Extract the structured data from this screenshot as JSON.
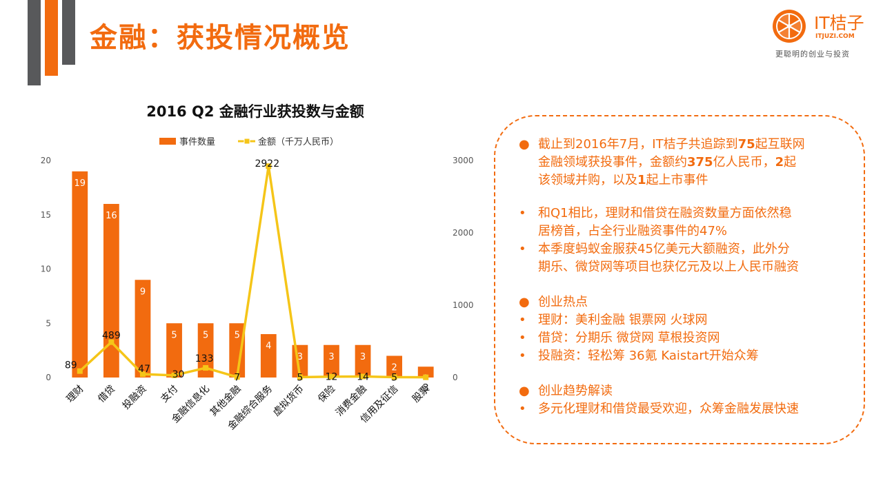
{
  "header": {
    "title": "金融：获投情况概览"
  },
  "logo": {
    "name": "IT桔子",
    "domain": "ITJUZI.COM",
    "slogan": "更聪明的创业与投资"
  },
  "chart_data": {
    "type": "bar",
    "title": "2016 Q2 金融行业获投数与金额",
    "categories": [
      "理财",
      "借贷",
      "投融资",
      "支付",
      "金融信息化",
      "其他金融",
      "金融综合服务",
      "虚拟货币",
      "保险",
      "消费金融",
      "信用及征信",
      "股票"
    ],
    "series": [
      {
        "name": "事件数量",
        "type": "bar",
        "axis": "left",
        "values": [
          19,
          16,
          9,
          5,
          5,
          5,
          4,
          3,
          3,
          3,
          2,
          1
        ]
      },
      {
        "name": "金额（千万人民币）",
        "type": "line",
        "axis": "right",
        "values": [
          89,
          489,
          47,
          30,
          133,
          7,
          2922,
          5,
          12,
          14,
          5,
          3
        ]
      }
    ],
    "line_labels": [
      "89",
      "489",
      "47",
      "30",
      "133",
      "7",
      "2922",
      "5",
      "12",
      "14",
      "5",
      "3"
    ],
    "ylim_left": [
      0,
      20
    ],
    "yticks_left": [
      0,
      5,
      10,
      15,
      20
    ],
    "ylim_right": [
      0,
      3000
    ],
    "yticks_right": [
      0,
      1000,
      2000,
      3000
    ],
    "legend_position": "top",
    "grid": false,
    "colors": {
      "bar": "#f26b0f",
      "line": "#f5c518"
    }
  },
  "info": {
    "section1": {
      "line1_pre": "截止到2016年7月，IT桔子共追踪到",
      "line1_b1": "75",
      "line1_post": "起互联网",
      "line2_pre": "金融领域获投事件，金额约",
      "line2_b1": "375",
      "line2_mid": "亿人民币，",
      "line2_b2": "2",
      "line2_post": "起",
      "line3_pre": "该领域并购，以及",
      "line3_b1": "1",
      "line3_post": "起上市事件"
    },
    "lines": [
      "和Q1相比，理财和借贷在融资数量方面依然稳",
      "居榜首，占全行业融资事件的47%",
      "本季度蚂蚁金服获45亿美元大额融资，此外分",
      "期乐、微贷网等项目也获亿元及以上人民币融资",
      "创业热点",
      "理财：美利金融 银票网 火球网",
      "借贷：分期乐 微贷网 草根投资网",
      "投融资：轻松筹 36氪 Kaistart开始众筹",
      "创业趋势解读",
      "多元化理财和借贷最受欢迎，众筹金融发展快速"
    ],
    "bullets": [
      "●",
      "•",
      "•",
      "●",
      "•",
      "•",
      "•",
      "●",
      "•"
    ]
  }
}
